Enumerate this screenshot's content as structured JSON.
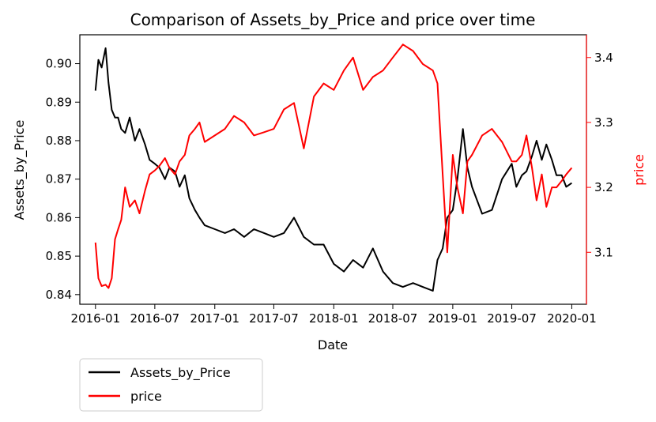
{
  "chart_data": {
    "type": "line",
    "title": "Comparison of Assets_by_Price and price over time",
    "xlabel": "Date",
    "ylabel_left": "Assets_by_Price",
    "ylabel_right": "price",
    "x_ticks": [
      "2016-01",
      "2016-07",
      "2017-01",
      "2017-07",
      "2018-01",
      "2018-07",
      "2019-01",
      "2019-07",
      "2020-01"
    ],
    "y_left_ticks": [
      "0.84",
      "0.85",
      "0.86",
      "0.87",
      "0.88",
      "0.89",
      "0.90"
    ],
    "y_right_ticks": [
      "3.1",
      "3.2",
      "3.3",
      "3.4"
    ],
    "ylim_left": [
      0.8375,
      0.9075
    ],
    "ylim_right": [
      3.02,
      3.435
    ],
    "xlim": [
      "2015-11-14",
      "2020-02-15"
    ],
    "grid": false,
    "legend_position": "below-left",
    "legend": [
      "Assets_by_Price",
      "price"
    ],
    "colors": {
      "Assets_by_Price": "#000000",
      "price": "#ff0000",
      "right_axis": "#ff0000"
    },
    "series": [
      {
        "name": "Assets_by_Price",
        "axis": "left",
        "x": [
          "2016-01-01",
          "2016-01-10",
          "2016-01-20",
          "2016-02-01",
          "2016-02-10",
          "2016-02-20",
          "2016-03-01",
          "2016-03-10",
          "2016-03-20",
          "2016-04-01",
          "2016-04-15",
          "2016-05-01",
          "2016-05-15",
          "2016-06-01",
          "2016-06-15",
          "2016-07-01",
          "2016-07-15",
          "2016-08-01",
          "2016-08-15",
          "2016-09-01",
          "2016-09-15",
          "2016-10-01",
          "2016-10-15",
          "2016-11-01",
          "2016-11-15",
          "2016-12-01",
          "2017-01-01",
          "2017-02-01",
          "2017-03-01",
          "2017-04-01",
          "2017-05-01",
          "2017-06-01",
          "2017-07-01",
          "2017-08-01",
          "2017-09-01",
          "2017-10-01",
          "2017-11-01",
          "2017-12-01",
          "2018-01-01",
          "2018-02-01",
          "2018-03-01",
          "2018-04-01",
          "2018-05-01",
          "2018-06-01",
          "2018-07-01",
          "2018-08-01",
          "2018-09-01",
          "2018-10-01",
          "2018-11-01",
          "2018-11-15",
          "2018-12-01",
          "2018-12-15",
          "2019-01-01",
          "2019-01-15",
          "2019-02-01",
          "2019-02-15",
          "2019-03-01",
          "2019-04-01",
          "2019-05-01",
          "2019-06-01",
          "2019-07-01",
          "2019-07-15",
          "2019-08-01",
          "2019-08-15",
          "2019-09-01",
          "2019-09-15",
          "2019-10-01",
          "2019-10-15",
          "2019-11-01",
          "2019-11-15",
          "2019-12-01",
          "2019-12-15",
          "2020-01-01"
        ],
        "values": [
          0.893,
          0.901,
          0.899,
          0.904,
          0.895,
          0.888,
          0.886,
          0.886,
          0.883,
          0.882,
          0.886,
          0.88,
          0.883,
          0.879,
          0.875,
          0.874,
          0.873,
          0.87,
          0.873,
          0.872,
          0.868,
          0.871,
          0.865,
          0.862,
          0.86,
          0.858,
          0.857,
          0.856,
          0.857,
          0.855,
          0.857,
          0.856,
          0.855,
          0.856,
          0.86,
          0.855,
          0.853,
          0.853,
          0.848,
          0.846,
          0.849,
          0.847,
          0.852,
          0.846,
          0.843,
          0.842,
          0.843,
          0.842,
          0.841,
          0.849,
          0.852,
          0.86,
          0.862,
          0.87,
          0.883,
          0.873,
          0.868,
          0.861,
          0.862,
          0.87,
          0.874,
          0.868,
          0.871,
          0.872,
          0.876,
          0.88,
          0.875,
          0.879,
          0.875,
          0.871,
          0.871,
          0.868,
          0.869
        ]
      },
      {
        "name": "price",
        "axis": "right",
        "x": [
          "2016-01-01",
          "2016-01-10",
          "2016-01-20",
          "2016-02-01",
          "2016-02-10",
          "2016-02-20",
          "2016-03-01",
          "2016-03-10",
          "2016-03-20",
          "2016-04-01",
          "2016-04-15",
          "2016-05-01",
          "2016-05-15",
          "2016-06-01",
          "2016-06-15",
          "2016-07-01",
          "2016-07-15",
          "2016-08-01",
          "2016-08-15",
          "2016-09-01",
          "2016-09-15",
          "2016-10-01",
          "2016-10-15",
          "2016-11-01",
          "2016-11-15",
          "2016-12-01",
          "2017-01-01",
          "2017-02-01",
          "2017-03-01",
          "2017-04-01",
          "2017-05-01",
          "2017-06-01",
          "2017-07-01",
          "2017-08-01",
          "2017-09-01",
          "2017-10-01",
          "2017-11-01",
          "2017-12-01",
          "2018-01-01",
          "2018-02-01",
          "2018-03-01",
          "2018-04-01",
          "2018-05-01",
          "2018-06-01",
          "2018-07-01",
          "2018-08-01",
          "2018-09-01",
          "2018-10-01",
          "2018-11-01",
          "2018-11-15",
          "2018-12-01",
          "2018-12-15",
          "2019-01-01",
          "2019-01-15",
          "2019-02-01",
          "2019-02-15",
          "2019-03-01",
          "2019-04-01",
          "2019-05-01",
          "2019-06-01",
          "2019-07-01",
          "2019-07-15",
          "2019-08-01",
          "2019-08-15",
          "2019-09-01",
          "2019-09-15",
          "2019-10-01",
          "2019-10-15",
          "2019-11-01",
          "2019-11-15",
          "2019-12-01",
          "2019-12-15",
          "2020-01-01"
        ],
        "values": [
          3.115,
          3.06,
          3.048,
          3.05,
          3.045,
          3.06,
          3.12,
          3.135,
          3.15,
          3.2,
          3.17,
          3.18,
          3.16,
          3.195,
          3.22,
          3.226,
          3.233,
          3.245,
          3.23,
          3.22,
          3.24,
          3.25,
          3.28,
          3.29,
          3.3,
          3.27,
          3.28,
          3.29,
          3.31,
          3.3,
          3.28,
          3.285,
          3.29,
          3.32,
          3.33,
          3.26,
          3.34,
          3.36,
          3.35,
          3.38,
          3.4,
          3.35,
          3.37,
          3.38,
          3.4,
          3.42,
          3.41,
          3.39,
          3.38,
          3.36,
          3.22,
          3.1,
          3.25,
          3.2,
          3.16,
          3.24,
          3.25,
          3.28,
          3.29,
          3.27,
          3.24,
          3.24,
          3.25,
          3.28,
          3.23,
          3.18,
          3.22,
          3.17,
          3.2,
          3.2,
          3.21,
          3.22,
          3.23
        ]
      }
    ]
  }
}
